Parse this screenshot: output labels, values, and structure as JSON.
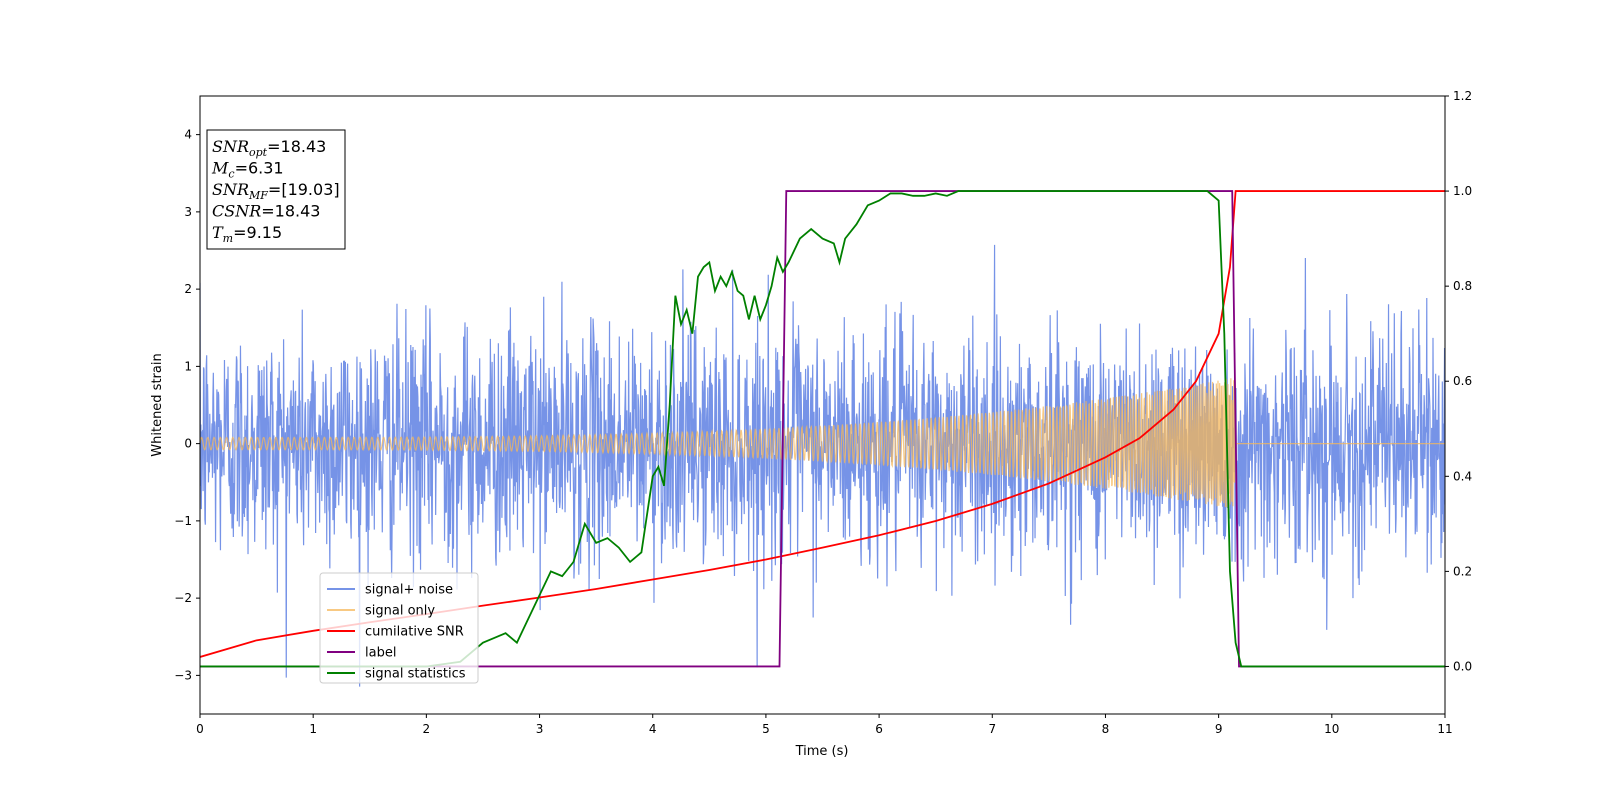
{
  "chart_data": {
    "type": "line",
    "xlabel": "Time (s)",
    "ylabel": "Whitened strain",
    "xlim": [
      0,
      11
    ],
    "ylim": [
      -3.5,
      4.5
    ],
    "y2lim": [
      -0.1,
      1.2
    ],
    "xticks": [
      0,
      1,
      2,
      3,
      4,
      5,
      6,
      7,
      8,
      9,
      10,
      11
    ],
    "yticks": [
      -3,
      -2,
      -1,
      0,
      1,
      2,
      3,
      4
    ],
    "y2ticks": [
      0.0,
      0.2,
      0.4,
      0.6,
      0.8,
      1.0,
      1.2
    ],
    "xtick_labels": [
      "0",
      "1",
      "2",
      "3",
      "4",
      "5",
      "6",
      "7",
      "8",
      "9",
      "10",
      "11"
    ],
    "ytick_labels": [
      "−3",
      "−2",
      "−1",
      "0",
      "1",
      "2",
      "3",
      "4"
    ],
    "y2tick_labels": [
      "0.0",
      "0.2",
      "0.4",
      "0.6",
      "0.8",
      "1.0",
      "1.2"
    ],
    "grid": false,
    "legend_position": "lower-left",
    "annotation": {
      "lines": [
        {
          "name": "SNR",
          "sub": "opt",
          "value": "=18.43"
        },
        {
          "name": "M",
          "sub": "c",
          "value": "=6.31"
        },
        {
          "name": "SNR",
          "sub": "MF",
          "value": "=[19.03]"
        },
        {
          "name": "CSNR",
          "sub": "",
          "value": "=18.43"
        },
        {
          "name": "T",
          "sub": "m",
          "value": "=9.15"
        }
      ]
    },
    "series": [
      {
        "name": "signal+ noise",
        "axis": "left",
        "color": "#6f8de6",
        "kind": "noise",
        "noise_sigma": 0.75,
        "noise_peak": 4.2,
        "x_start": 0,
        "x_end": 11
      },
      {
        "name": "signal only",
        "axis": "left",
        "color": "#f5b75a",
        "kind": "chirp",
        "amp_start": 0.08,
        "amp_end": 0.9,
        "t_merge": 9.15,
        "x_start": 0,
        "x_end": 11
      },
      {
        "name": "cumilative SNR",
        "axis": "right",
        "color": "#ff0000",
        "x": [
          0,
          0.5,
          1,
          1.5,
          2,
          2.5,
          3,
          3.5,
          4,
          4.5,
          5,
          5.5,
          6,
          6.5,
          7,
          7.5,
          8,
          8.3,
          8.6,
          8.8,
          9.0,
          9.1,
          9.15,
          9.5,
          10,
          10.5,
          11
        ],
        "y": [
          0.02,
          0.055,
          0.075,
          0.093,
          0.11,
          0.128,
          0.145,
          0.163,
          0.183,
          0.203,
          0.225,
          0.25,
          0.276,
          0.306,
          0.342,
          0.385,
          0.44,
          0.48,
          0.54,
          0.6,
          0.7,
          0.84,
          1.0,
          1.0,
          1.0,
          1.0,
          1.0
        ]
      },
      {
        "name": "label",
        "axis": "right",
        "color": "#800080",
        "x": [
          0,
          5.12,
          5.18,
          9.12,
          9.18,
          11
        ],
        "y": [
          0,
          0,
          1,
          1,
          0,
          0
        ]
      },
      {
        "name": "signal statistics",
        "axis": "right",
        "color": "#008000",
        "x": [
          0,
          1,
          2,
          2.3,
          2.4,
          2.5,
          2.6,
          2.7,
          2.8,
          2.9,
          3.0,
          3.1,
          3.2,
          3.3,
          3.4,
          3.5,
          3.6,
          3.7,
          3.8,
          3.9,
          4.0,
          4.05,
          4.1,
          4.15,
          4.2,
          4.25,
          4.3,
          4.35,
          4.4,
          4.45,
          4.5,
          4.55,
          4.6,
          4.65,
          4.7,
          4.75,
          4.8,
          4.85,
          4.9,
          4.95,
          5.0,
          5.05,
          5.1,
          5.15,
          5.2,
          5.3,
          5.4,
          5.5,
          5.6,
          5.65,
          5.7,
          5.8,
          5.9,
          6.0,
          6.1,
          6.2,
          6.3,
          6.4,
          6.5,
          6.6,
          6.7,
          6.8,
          7.0,
          7.5,
          8.0,
          8.5,
          8.9,
          9.0,
          9.05,
          9.1,
          9.15,
          9.2,
          11
        ],
        "y": [
          0,
          0,
          0,
          0.01,
          0.03,
          0.05,
          0.06,
          0.07,
          0.05,
          0.1,
          0.15,
          0.2,
          0.19,
          0.22,
          0.3,
          0.26,
          0.27,
          0.25,
          0.22,
          0.24,
          0.4,
          0.42,
          0.38,
          0.55,
          0.78,
          0.72,
          0.75,
          0.7,
          0.82,
          0.84,
          0.85,
          0.79,
          0.82,
          0.8,
          0.83,
          0.79,
          0.78,
          0.73,
          0.78,
          0.73,
          0.76,
          0.8,
          0.86,
          0.83,
          0.85,
          0.9,
          0.92,
          0.9,
          0.89,
          0.85,
          0.9,
          0.93,
          0.97,
          0.98,
          0.995,
          0.995,
          0.99,
          0.99,
          0.995,
          0.99,
          1.0,
          1.0,
          1.0,
          1.0,
          1.0,
          1.0,
          1.0,
          0.98,
          0.7,
          0.2,
          0.05,
          0.0,
          0.0
        ]
      }
    ]
  }
}
